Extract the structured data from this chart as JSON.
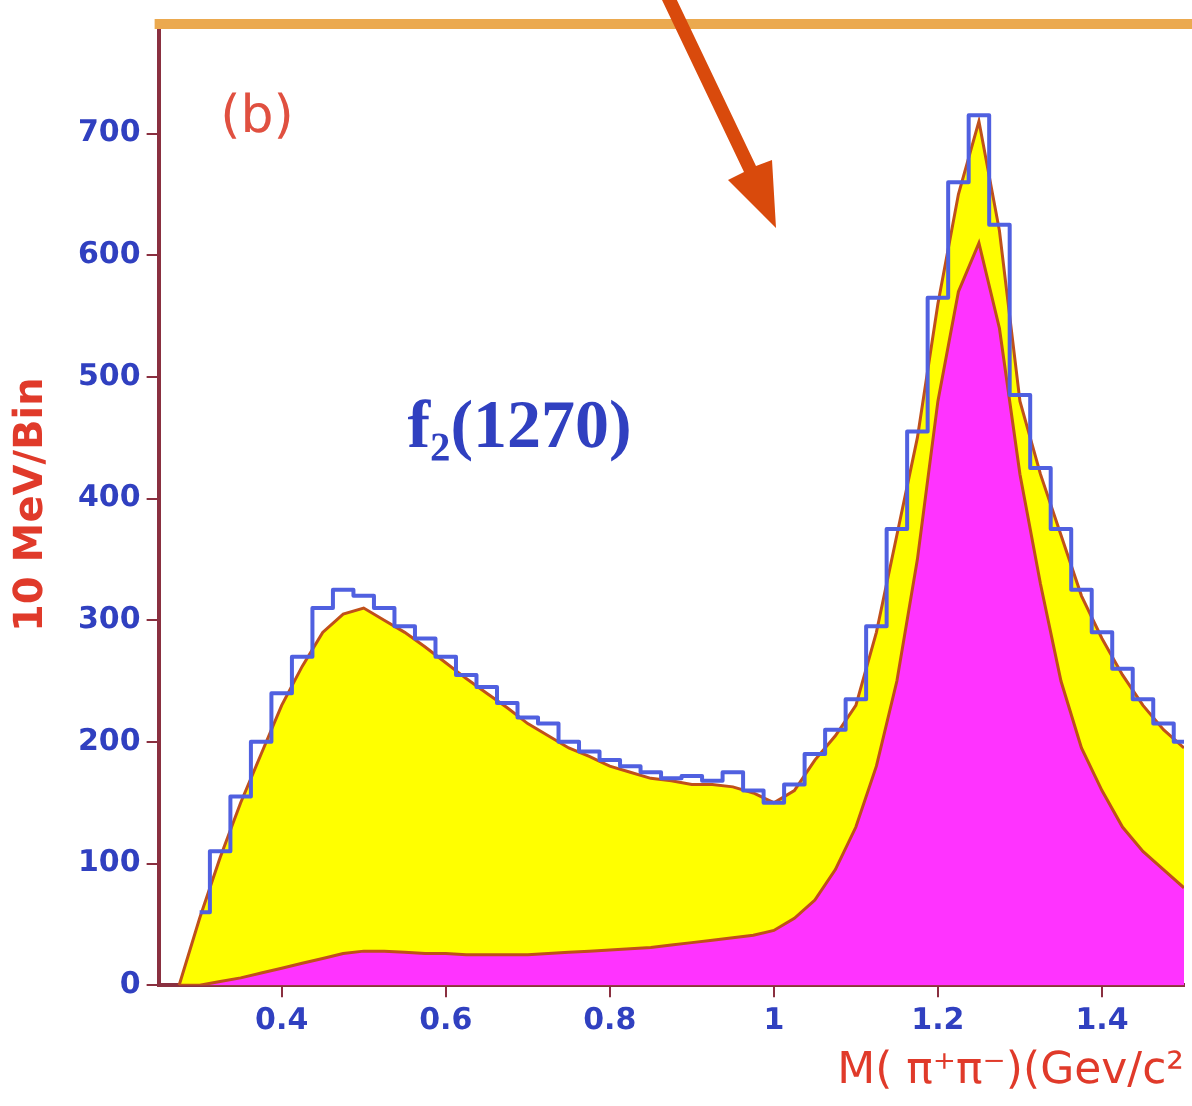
{
  "chart_data": {
    "type": "area",
    "ylabel": "10 MeV/Bin",
    "xlabel": "M( π⁺π⁻)(Gev/c²",
    "annotations": [
      "(b)",
      "f₂(1270)"
    ],
    "x": [
      0.275,
      0.3,
      0.325,
      0.35,
      0.375,
      0.4,
      0.425,
      0.45,
      0.475,
      0.5,
      0.525,
      0.55,
      0.575,
      0.6,
      0.625,
      0.65,
      0.675,
      0.7,
      0.725,
      0.75,
      0.775,
      0.8,
      0.825,
      0.85,
      0.875,
      0.9,
      0.925,
      0.95,
      0.975,
      1.0,
      1.025,
      1.05,
      1.075,
      1.1,
      1.125,
      1.15,
      1.175,
      1.2,
      1.225,
      1.25,
      1.275,
      1.3,
      1.325,
      1.35,
      1.375,
      1.4,
      1.425,
      1.45,
      1.475,
      1.5
    ],
    "series": [
      {
        "color": "#ffff00",
        "values": [
          0,
          55,
          105,
          150,
          190,
          230,
          262,
          290,
          305,
          310,
          300,
          290,
          278,
          265,
          252,
          240,
          228,
          215,
          205,
          195,
          188,
          180,
          175,
          170,
          168,
          165,
          165,
          163,
          158,
          150,
          160,
          185,
          205,
          230,
          290,
          370,
          450,
          560,
          650,
          710,
          620,
          480,
          420,
          370,
          320,
          285,
          255,
          230,
          210,
          195
        ]
      },
      {
        "color": "#ff33ff",
        "values": [
          0,
          0,
          3,
          6,
          10,
          14,
          18,
          22,
          26,
          28,
          28,
          27,
          26,
          26,
          25,
          25,
          25,
          25,
          26,
          27,
          28,
          29,
          30,
          31,
          33,
          35,
          37,
          39,
          41,
          45,
          55,
          70,
          95,
          130,
          180,
          250,
          350,
          480,
          570,
          610,
          540,
          420,
          330,
          250,
          195,
          160,
          130,
          110,
          95,
          80
        ]
      },
      {
        "type": "step",
        "color": "#5060e0",
        "values": [
          null,
          60,
          110,
          155,
          200,
          240,
          270,
          310,
          325,
          320,
          310,
          295,
          285,
          270,
          255,
          245,
          232,
          220,
          215,
          200,
          192,
          185,
          180,
          175,
          170,
          172,
          168,
          175,
          160,
          150,
          165,
          190,
          210,
          235,
          295,
          375,
          455,
          565,
          660,
          715,
          625,
          485,
          425,
          375,
          325,
          290,
          260,
          235,
          215,
          200
        ]
      }
    ],
    "xlim": [
      0.25,
      1.5
    ],
    "xticks": [
      0.4,
      0.6,
      0.8,
      1,
      1.2,
      1.4
    ],
    "ylim": [
      0,
      790
    ],
    "yticks": [
      0,
      100,
      200,
      300,
      400,
      500,
      600,
      700
    ],
    "grid": false,
    "legend": false
  }
}
